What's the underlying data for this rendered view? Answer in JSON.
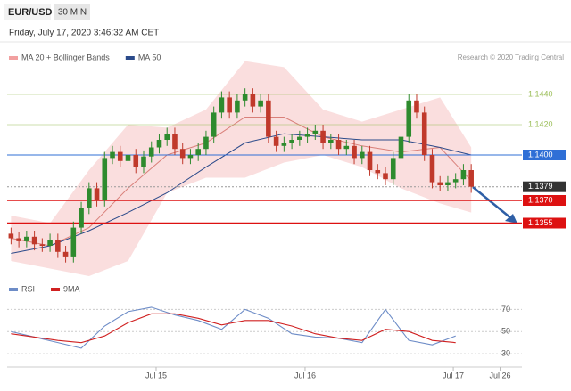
{
  "header": {
    "symbol": "EUR/USD",
    "timeframe": "30 MIN",
    "datetime": "Friday, July 17, 2020 3:46:32 AM CET"
  },
  "chart_data": [
    {
      "type": "candlestick",
      "legend": [
        {
          "name": "MA 20 + Bollinger Bands",
          "color": "#f2a0a0"
        },
        {
          "name": "MA 50",
          "color": "#2b4a8a"
        }
      ],
      "credit": "Research © 2020 Trading Central",
      "ylim": [
        1.132,
        1.147
      ],
      "xlim": [
        0,
        66
      ],
      "xticks": [
        {
          "value": 19.1,
          "label": "Jul 15"
        },
        {
          "value": 38.2,
          "label": "Jul 16"
        },
        {
          "value": 57.2,
          "label": "Jul 17"
        },
        {
          "value": 63.2,
          "label": "Jul 26"
        }
      ],
      "up_color": "#2e8b2e",
      "down_color": "#c0392b",
      "ohlc": [
        [
          1.1348,
          1.1352,
          1.1341,
          1.1345
        ],
        [
          1.1345,
          1.1349,
          1.1339,
          1.1343
        ],
        [
          1.1343,
          1.135,
          1.1339,
          1.1346
        ],
        [
          1.1346,
          1.135,
          1.1337,
          1.1341
        ],
        [
          1.1341,
          1.1345,
          1.1336,
          1.134
        ],
        [
          1.134,
          1.1348,
          1.1336,
          1.1344
        ],
        [
          1.1344,
          1.1348,
          1.1332,
          1.1336
        ],
        [
          1.1336,
          1.134,
          1.1329,
          1.1333
        ],
        [
          1.1333,
          1.1356,
          1.1329,
          1.1352
        ],
        [
          1.1352,
          1.1369,
          1.1348,
          1.1365
        ],
        [
          1.1365,
          1.1382,
          1.1361,
          1.1378
        ],
        [
          1.1378,
          1.1382,
          1.1366,
          1.137
        ],
        [
          1.137,
          1.1402,
          1.1366,
          1.1398
        ],
        [
          1.1398,
          1.1406,
          1.1394,
          1.1402
        ],
        [
          1.1402,
          1.1406,
          1.1392,
          1.1396
        ],
        [
          1.1396,
          1.1404,
          1.1392,
          1.14
        ],
        [
          1.14,
          1.1404,
          1.1388,
          1.1392
        ],
        [
          1.1392,
          1.1403,
          1.1388,
          1.1399
        ],
        [
          1.1399,
          1.1409,
          1.1395,
          1.1405
        ],
        [
          1.1405,
          1.1414,
          1.1401,
          1.141
        ],
        [
          1.141,
          1.1418,
          1.1406,
          1.1414
        ],
        [
          1.1414,
          1.1418,
          1.14,
          1.1404
        ],
        [
          1.1404,
          1.1408,
          1.1394,
          1.1398
        ],
        [
          1.1398,
          1.1404,
          1.1394,
          1.14
        ],
        [
          1.14,
          1.1408,
          1.1396,
          1.1404
        ],
        [
          1.1404,
          1.1416,
          1.14,
          1.1412
        ],
        [
          1.1412,
          1.1432,
          1.1408,
          1.1428
        ],
        [
          1.1428,
          1.1442,
          1.1424,
          1.1438
        ],
        [
          1.1438,
          1.1442,
          1.1424,
          1.1428
        ],
        [
          1.1428,
          1.144,
          1.1424,
          1.1436
        ],
        [
          1.1436,
          1.1444,
          1.1432,
          1.144
        ],
        [
          1.144,
          1.1444,
          1.1428,
          1.1432
        ],
        [
          1.1432,
          1.144,
          1.1428,
          1.1436
        ],
        [
          1.1436,
          1.144,
          1.1408,
          1.1412
        ],
        [
          1.1412,
          1.1416,
          1.1402,
          1.1406
        ],
        [
          1.1406,
          1.1412,
          1.1402,
          1.1408
        ],
        [
          1.1408,
          1.1414,
          1.1404,
          1.141
        ],
        [
          1.141,
          1.1416,
          1.1406,
          1.1412
        ],
        [
          1.1412,
          1.1418,
          1.1408,
          1.1414
        ],
        [
          1.1414,
          1.142,
          1.141,
          1.1416
        ],
        [
          1.1416,
          1.142,
          1.1404,
          1.1408
        ],
        [
          1.1408,
          1.1414,
          1.1404,
          1.141
        ],
        [
          1.141,
          1.1414,
          1.14,
          1.1404
        ],
        [
          1.1404,
          1.141,
          1.14,
          1.1406
        ],
        [
          1.1406,
          1.141,
          1.1394,
          1.1398
        ],
        [
          1.1398,
          1.1406,
          1.1394,
          1.1402
        ],
        [
          1.1402,
          1.1406,
          1.1386,
          1.139
        ],
        [
          1.139,
          1.1394,
          1.1384,
          1.1388
        ],
        [
          1.1388,
          1.1392,
          1.138,
          1.1384
        ],
        [
          1.1384,
          1.1402,
          1.138,
          1.1398
        ],
        [
          1.1398,
          1.1416,
          1.1394,
          1.1412
        ],
        [
          1.1412,
          1.144,
          1.1408,
          1.1436
        ],
        [
          1.1436,
          1.144,
          1.1424,
          1.1428
        ],
        [
          1.1428,
          1.1432,
          1.1396,
          1.14
        ],
        [
          1.14,
          1.1404,
          1.1378,
          1.1382
        ],
        [
          1.1382,
          1.1386,
          1.1376,
          1.138
        ],
        [
          1.138,
          1.1386,
          1.1376,
          1.1382
        ],
        [
          1.1382,
          1.1388,
          1.1378,
          1.1384
        ],
        [
          1.1384,
          1.1394,
          1.138,
          1.139
        ],
        [
          1.139,
          1.1394,
          1.1375,
          1.1379
        ]
      ],
      "bands_x": [
        0,
        5,
        10,
        15,
        20,
        25,
        30,
        35,
        40,
        45,
        50,
        55,
        59
      ],
      "band_upper": [
        1.136,
        1.1355,
        1.139,
        1.142,
        1.1418,
        1.143,
        1.1462,
        1.1458,
        1.143,
        1.1422,
        1.143,
        1.1438,
        1.1405
      ],
      "band_lower": [
        1.133,
        1.1325,
        1.132,
        1.133,
        1.1375,
        1.1385,
        1.1385,
        1.1395,
        1.14,
        1.1392,
        1.1378,
        1.1368,
        1.1362
      ],
      "ma20": [
        1.1345,
        1.134,
        1.1352,
        1.1378,
        1.14,
        1.1408,
        1.1425,
        1.1425,
        1.1412,
        1.1406,
        1.1402,
        1.1405,
        1.1383
      ],
      "ma20_color": "#d9807a",
      "ma50": [
        1.1335,
        1.134,
        1.135,
        1.1362,
        1.1375,
        1.1392,
        1.1408,
        1.1414,
        1.1412,
        1.141,
        1.141,
        1.1405,
        1.14
      ],
      "levels": [
        {
          "value": 1.144,
          "label": "1.1440",
          "color": "#9cbf5a",
          "style": "text"
        },
        {
          "value": 1.142,
          "label": "1.1420",
          "color": "#9cbf5a",
          "style": "text"
        },
        {
          "value": 1.14,
          "label": "1.1400",
          "color": "#2f6fd6",
          "style": "box"
        },
        {
          "value": 1.1379,
          "label": "1.1379",
          "color": "#333333",
          "style": "dotted"
        },
        {
          "value": 1.137,
          "label": "1.1370",
          "color": "#dd1111",
          "style": "box"
        },
        {
          "value": 1.1355,
          "label": "1.1355",
          "color": "#dd1111",
          "style": "box"
        }
      ]
    },
    {
      "type": "line",
      "ylim": [
        22,
        84
      ],
      "yticks": [
        70,
        50,
        30
      ],
      "x": [
        0,
        3,
        6,
        9,
        12,
        15,
        18,
        21,
        24,
        27,
        30,
        33,
        36,
        39,
        42,
        45,
        48,
        51,
        54,
        57
      ],
      "series": [
        {
          "name": "RSI",
          "color": "#6d8cc7",
          "values": [
            50,
            45,
            40,
            35,
            55,
            68,
            72,
            65,
            60,
            52,
            70,
            62,
            48,
            45,
            44,
            40,
            70,
            42,
            38,
            46
          ]
        },
        {
          "name": "9MA",
          "color": "#d02020",
          "values": [
            48,
            45,
            42,
            40,
            46,
            58,
            66,
            66,
            62,
            56,
            60,
            60,
            55,
            48,
            44,
            42,
            52,
            50,
            42,
            40
          ]
        }
      ]
    }
  ]
}
